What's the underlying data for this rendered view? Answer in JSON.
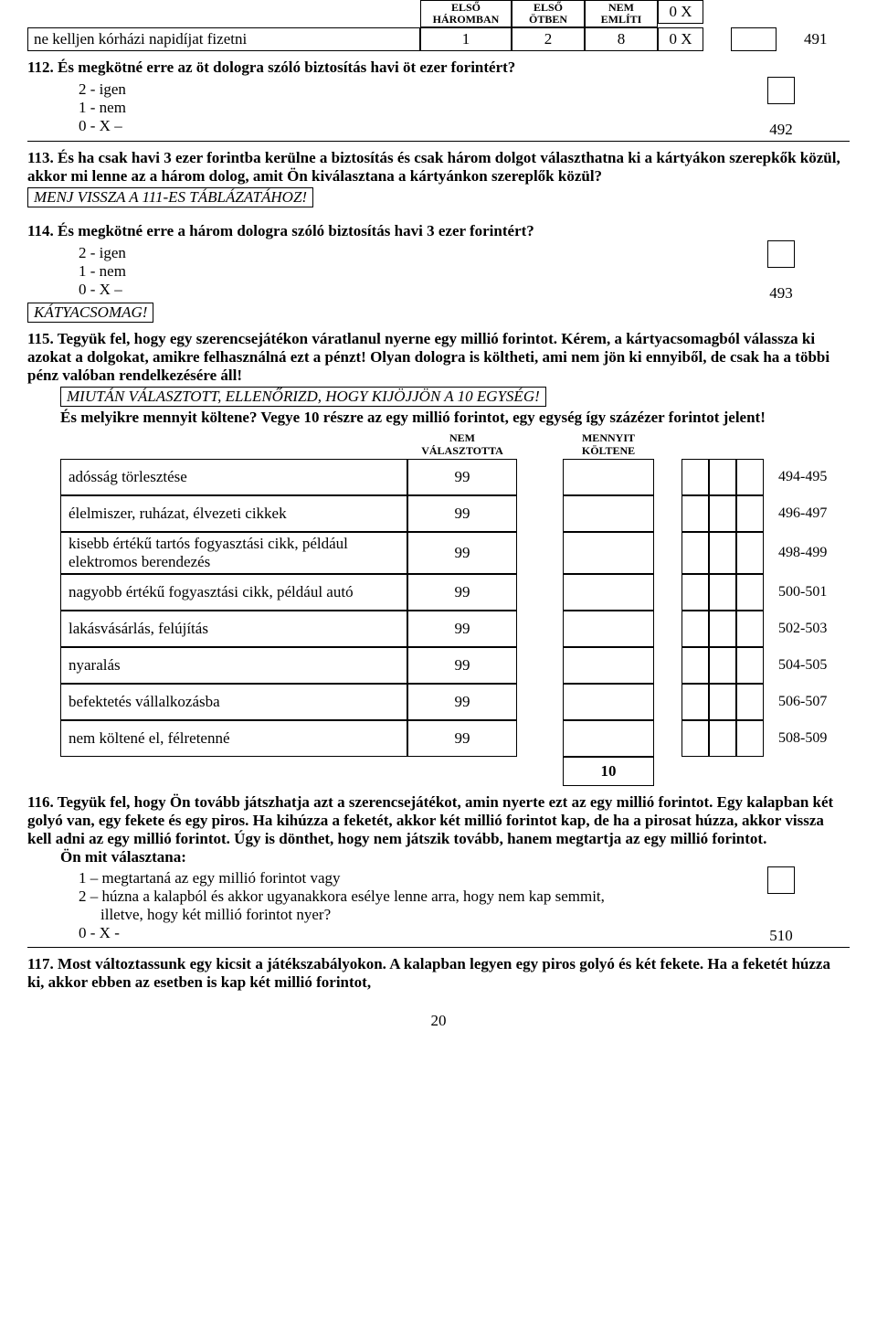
{
  "topTable": {
    "headers": [
      "ELSŐ HÁROMBAN",
      "ELSŐ ÖTBEN",
      "NEM EMLÍTI"
    ],
    "zeroX": "0  X",
    "row": {
      "label": "ne kelljen kórházi napidíjat fizetni",
      "c1": "1",
      "c2": "2",
      "c3": "8",
      "c4": "0  X",
      "ref": "491"
    }
  },
  "q112": {
    "title": "112. És megkötné erre az öt dologra szóló biztosítás havi öt ezer forintért?",
    "opt1": "2 - igen",
    "opt2": "1 - nem",
    "opt3": "0 -     X –",
    "ref": "492"
  },
  "q113": {
    "title": "113. És ha csak havi 3 ezer forintba kerülne a biztosítás és csak három dolgot választhatna ki a kártyákon szerepkők közül, akkor mi lenne az a három dolog, amit Ön kiválasztana a kártyánkon szereplők közül?",
    "instr": "MENJ VISSZA A 111-ES TÁBLÁZATÁHOZ!"
  },
  "q114": {
    "title": "114. És megkötné erre a három dologra szóló biztosítás havi 3 ezer forintért?",
    "opt1": "2 - igen",
    "opt2": "1 - nem",
    "opt3": "0 -     X –",
    "ref": "493",
    "note": "KÁTYACSOMAG!"
  },
  "q115": {
    "title": "115. Tegyük fel, hogy egy szerencsejátékon váratlanul nyerne egy millió forintot. Kérem, a kártyacsomagból válassza ki azokat a dolgokat, amikre felhasználná ezt a pénzt! Olyan dologra is költheti, ami nem jön ki ennyiből, de csak ha a többi pénz valóban rendelkezésére áll!",
    "instr": "MIUTÁN VÁLASZTOTT, ELLENŐRIZD, HOGY KIJÖJJÖN A 10 EGYSÉG!",
    "sub": "És melyikre mennyit költene? Vegye 10 részre az egy millió forintot, egy egység így százézer forintot jelent!",
    "hdr1": "NEM VÁLASZTOTTA",
    "hdr2": "MENNYIT KÖLTENE",
    "rows": [
      {
        "label": "adósság törlesztése",
        "v": "99",
        "ref": "494-495"
      },
      {
        "label": "élelmiszer, ruházat, élvezeti cikkek",
        "v": "99",
        "ref": "496-497"
      },
      {
        "label": "kisebb értékű tartós fogyasztási cikk, például elektromos berendezés",
        "v": "99",
        "ref": "498-499"
      },
      {
        "label": "nagyobb értékű fogyasztási cikk, például autó",
        "v": "99",
        "ref": "500-501"
      },
      {
        "label": "lakásvásárlás, felújítás",
        "v": "99",
        "ref": "502-503"
      },
      {
        "label": "nyaralás",
        "v": "99",
        "ref": "504-505"
      },
      {
        "label": "befektetés vállalkozásba",
        "v": "99",
        "ref": "506-507"
      },
      {
        "label": "nem költené el, félretenné",
        "v": "99",
        "ref": "508-509"
      }
    ],
    "total": "10"
  },
  "q116": {
    "title": "116. Tegyük fel, hogy Ön tovább játszhatja azt a szerencsejátékot, amin nyerte ezt az egy millió forintot. Egy kalapban két golyó van, egy fekete és egy piros. Ha kihúzza a feketét, akkor két millió forintot kap, de ha a pirosat húzza, akkor vissza kell adni az egy millió forintot. Úgy is dönthet, hogy nem játszik tovább, hanem megtartja az egy millió forintot.",
    "prompt": "Ön mit választana:",
    "opt1": "1 – megtartaná az egy millió forintot vagy",
    "opt2": "2 – húzna a kalapból és akkor ugyanakkora esélye lenne arra, hogy nem kap semmit,",
    "opt2b": "illetve, hogy két millió forintot nyer?",
    "opt3": "0 -     X -",
    "ref": "510"
  },
  "q117": {
    "title": "117. Most változtassunk egy kicsit a játékszabályokon. A kalapban legyen egy piros golyó és két fekete.  Ha a feketét húzza ki, akkor ebben az esetben is kap két millió forintot,"
  },
  "pageNum": "20"
}
